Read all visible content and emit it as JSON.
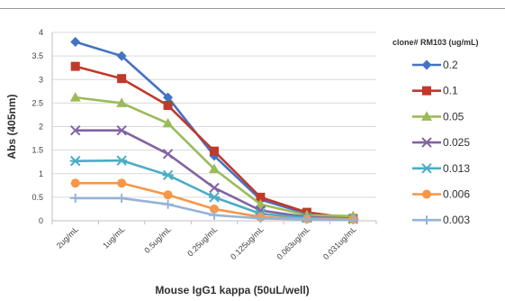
{
  "chart_data": {
    "type": "line",
    "title": "",
    "xlabel": "Mouse IgG1 kappa (50uL/well)",
    "ylabel": "Abs (405nm)",
    "ylim": [
      0,
      4
    ],
    "yticks": [
      "0",
      "0.5",
      "1",
      "1.5",
      "2",
      "2.5",
      "3",
      "3.5",
      "4"
    ],
    "grid": true,
    "legend_position": "right",
    "legend_title": "clone# RM103 (ug/mL)",
    "categories": [
      "2ug/mL",
      "1ug/mL",
      "0.5ug/mL",
      "0.25ug/mL",
      "0.125ug/mL",
      "0.063ug/mL",
      "0.031ug/mL"
    ],
    "series": [
      {
        "name": "0.2",
        "color": "#4472c4",
        "marker": "diamond",
        "values": [
          3.8,
          3.5,
          2.62,
          1.38,
          0.45,
          0.15,
          0.05
        ]
      },
      {
        "name": "0.1",
        "color": "#c0392b",
        "marker": "square",
        "values": [
          3.28,
          3.02,
          2.45,
          1.48,
          0.5,
          0.18,
          0.05
        ]
      },
      {
        "name": "0.05",
        "color": "#9bbb59",
        "marker": "triangle",
        "values": [
          2.62,
          2.5,
          2.07,
          1.1,
          0.35,
          0.12,
          0.1
        ]
      },
      {
        "name": "0.025",
        "color": "#8064a2",
        "marker": "x",
        "values": [
          1.92,
          1.92,
          1.42,
          0.7,
          0.22,
          0.08,
          0.04
        ]
      },
      {
        "name": "0.013",
        "color": "#4bacc6",
        "marker": "asterisk",
        "values": [
          1.27,
          1.28,
          0.97,
          0.5,
          0.15,
          0.06,
          0.04
        ]
      },
      {
        "name": "0.006",
        "color": "#f79646",
        "marker": "circle",
        "values": [
          0.8,
          0.8,
          0.55,
          0.25,
          0.08,
          0.04,
          0.03
        ]
      },
      {
        "name": "0.003",
        "color": "#95b3d7",
        "marker": "plus",
        "values": [
          0.48,
          0.48,
          0.35,
          0.12,
          0.05,
          0.03,
          0.02
        ]
      }
    ]
  }
}
